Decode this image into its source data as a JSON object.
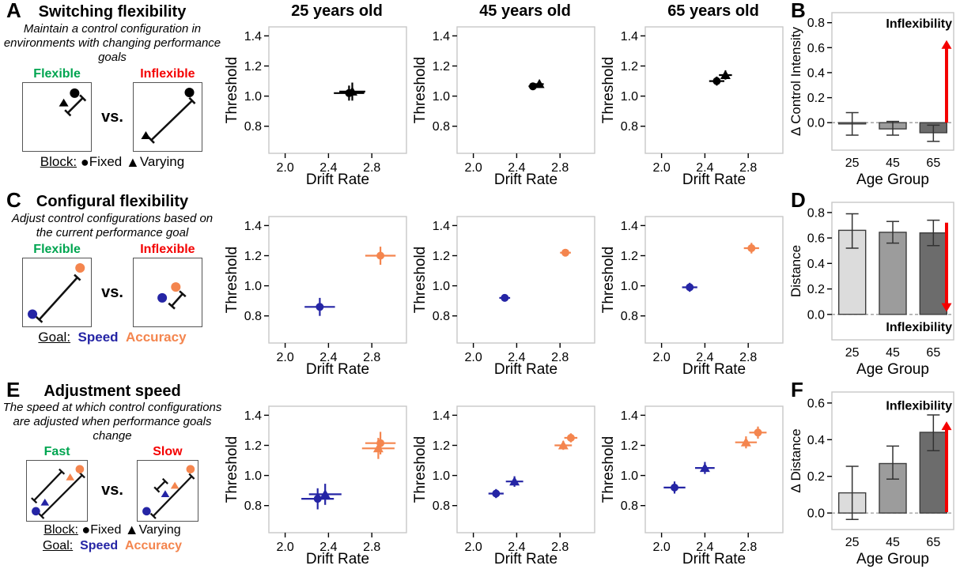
{
  "colors": {
    "black": "#000000",
    "blue": "#2525A5",
    "orange": "#F4854E",
    "green": "#00A550",
    "red": "#F40000",
    "bar_fills": [
      "#DCDCDC",
      "#9C9C9C",
      "#6C6C6C"
    ],
    "bar_border": "#3D3D3D",
    "panel_border": "#C8C8C8",
    "zero_line": "#999999"
  },
  "icons": {
    "fixed_marker": "●",
    "varying_marker": "▲"
  },
  "panels": {
    "A": {
      "letter": "A",
      "title": "Switching flexibility",
      "description": "Maintain a control configuration in environments with changing performance goals",
      "left_box_label": "Flexible",
      "right_box_label": "Inflexible",
      "vs": "vs.",
      "legend_block_label": "Block:",
      "legend_fixed": "Fixed",
      "legend_varying": "Varying"
    },
    "C": {
      "letter": "C",
      "title": "Configural flexibility",
      "description": "Adjust control configurations based on the current performance goal",
      "left_box_label": "Flexible",
      "right_box_label": "Inflexible",
      "vs": "vs.",
      "legend_goal_label": "Goal:",
      "legend_speed": "Speed",
      "legend_accuracy": "Accuracy"
    },
    "E": {
      "letter": "E",
      "title": "Adjustment speed",
      "description": "The speed at which control configurations are adjusted when performance goals change",
      "left_box_label": "Fast",
      "right_box_label": "Slow",
      "vs": "vs.",
      "legend_block_label": "Block:",
      "legend_fixed": "Fixed",
      "legend_varying": "Varying",
      "legend_goal_label": "Goal:",
      "legend_speed": "Speed",
      "legend_accuracy": "Accuracy"
    }
  },
  "chart_data": [
    {
      "id": "A25",
      "type": "scatter",
      "title": "25 years old",
      "xlabel": "Drift Rate",
      "ylabel": "Threshold",
      "xlim": [
        1.85,
        3.12
      ],
      "ylim": [
        0.62,
        1.46
      ],
      "xticks": [
        2.0,
        2.4,
        2.8
      ],
      "yticks": [
        0.8,
        1.0,
        1.2,
        1.4
      ],
      "points": [
        {
          "marker": "circle",
          "color": "black",
          "x": 2.59,
          "y": 1.02,
          "xerr": 0.14,
          "yerr": 0.05
        },
        {
          "marker": "triangle",
          "color": "black",
          "x": 2.62,
          "y": 1.03,
          "xerr": 0.12,
          "yerr": 0.06
        }
      ]
    },
    {
      "id": "A45",
      "type": "scatter",
      "title": "45 years old",
      "xlabel": "Drift Rate",
      "ylabel": "Threshold",
      "xlim": [
        1.85,
        3.12
      ],
      "ylim": [
        0.62,
        1.46
      ],
      "xticks": [
        2.0,
        2.4,
        2.8
      ],
      "yticks": [
        0.8,
        1.0,
        1.2,
        1.4
      ],
      "points": [
        {
          "marker": "circle",
          "color": "black",
          "x": 2.55,
          "y": 1.065,
          "xerr": 0.04,
          "yerr": 0.02
        },
        {
          "marker": "triangle",
          "color": "black",
          "x": 2.61,
          "y": 1.08,
          "xerr": 0.04,
          "yerr": 0.025
        }
      ]
    },
    {
      "id": "A65",
      "type": "scatter",
      "title": "65 years old",
      "xlabel": "Drift Rate",
      "ylabel": "Threshold",
      "xlim": [
        1.85,
        3.12
      ],
      "ylim": [
        0.62,
        1.46
      ],
      "xticks": [
        2.0,
        2.4,
        2.8
      ],
      "yticks": [
        0.8,
        1.0,
        1.2,
        1.4
      ],
      "points": [
        {
          "marker": "circle",
          "color": "black",
          "x": 2.51,
          "y": 1.1,
          "xerr": 0.07,
          "yerr": 0.03
        },
        {
          "marker": "triangle",
          "color": "black",
          "x": 2.59,
          "y": 1.14,
          "xerr": 0.06,
          "yerr": 0.03
        }
      ]
    },
    {
      "id": "B",
      "type": "bar",
      "letter": "B",
      "ylabel": "Δ Control Intensity",
      "xlabel": "Age Group",
      "categories": [
        "25",
        "45",
        "65"
      ],
      "values": [
        -0.01,
        -0.05,
        -0.08
      ],
      "err_low": [
        -0.1,
        -0.1,
        -0.15
      ],
      "err_high": [
        0.08,
        0.01,
        -0.02
      ],
      "yticks": [
        0.0,
        0.2,
        0.4,
        0.6,
        0.8
      ],
      "ylim": [
        -0.22,
        0.88
      ],
      "annotation": "Inflexibility",
      "arrow": {
        "dir": "up",
        "start": 0.0,
        "end": 0.66,
        "label_y": 0.79
      }
    },
    {
      "id": "C25",
      "type": "scatter",
      "title": "",
      "xlabel": "Drift Rate",
      "ylabel": "Threshold",
      "xlim": [
        1.85,
        3.12
      ],
      "ylim": [
        0.62,
        1.46
      ],
      "xticks": [
        2.0,
        2.4,
        2.8
      ],
      "yticks": [
        0.8,
        1.0,
        1.2,
        1.4
      ],
      "points": [
        {
          "marker": "circle",
          "color": "blue",
          "x": 2.32,
          "y": 0.86,
          "xerr": 0.14,
          "yerr": 0.06
        },
        {
          "marker": "circle",
          "color": "orange",
          "x": 2.88,
          "y": 1.2,
          "xerr": 0.14,
          "yerr": 0.06
        }
      ]
    },
    {
      "id": "C45",
      "type": "scatter",
      "title": "",
      "xlabel": "Drift Rate",
      "ylabel": "Threshold",
      "xlim": [
        1.85,
        3.12
      ],
      "ylim": [
        0.62,
        1.46
      ],
      "xticks": [
        2.0,
        2.4,
        2.8
      ],
      "yticks": [
        0.8,
        1.0,
        1.2,
        1.4
      ],
      "points": [
        {
          "marker": "circle",
          "color": "blue",
          "x": 2.29,
          "y": 0.92,
          "xerr": 0.05,
          "yerr": 0.02
        },
        {
          "marker": "circle",
          "color": "orange",
          "x": 2.85,
          "y": 1.22,
          "xerr": 0.05,
          "yerr": 0.02
        }
      ]
    },
    {
      "id": "C65",
      "type": "scatter",
      "title": "",
      "xlabel": "Drift Rate",
      "ylabel": "Threshold",
      "xlim": [
        1.85,
        3.12
      ],
      "ylim": [
        0.62,
        1.46
      ],
      "xticks": [
        2.0,
        2.4,
        2.8
      ],
      "yticks": [
        0.8,
        1.0,
        1.2,
        1.4
      ],
      "points": [
        {
          "marker": "circle",
          "color": "blue",
          "x": 2.26,
          "y": 0.99,
          "xerr": 0.07,
          "yerr": 0.03
        },
        {
          "marker": "circle",
          "color": "orange",
          "x": 2.83,
          "y": 1.25,
          "xerr": 0.07,
          "yerr": 0.035
        }
      ]
    },
    {
      "id": "D",
      "type": "bar",
      "letter": "D",
      "ylabel": "Distance",
      "xlabel": "Age Group",
      "categories": [
        "25",
        "45",
        "65"
      ],
      "values": [
        0.66,
        0.645,
        0.64
      ],
      "err_low": [
        0.52,
        0.56,
        0.54
      ],
      "err_high": [
        0.79,
        0.73,
        0.74
      ],
      "yticks": [
        0.0,
        0.2,
        0.4,
        0.6,
        0.8
      ],
      "ylim": [
        -0.2,
        0.88
      ],
      "annotation": "Inflexibility",
      "arrow": {
        "dir": "down",
        "start": 0.72,
        "end": 0.02,
        "label_y": -0.1
      }
    },
    {
      "id": "E25",
      "type": "scatter",
      "title": "",
      "xlabel": "Drift Rate",
      "ylabel": "Threshold",
      "xlim": [
        1.85,
        3.12
      ],
      "ylim": [
        0.62,
        1.46
      ],
      "xticks": [
        2.0,
        2.4,
        2.8
      ],
      "yticks": [
        0.8,
        1.0,
        1.2,
        1.4
      ],
      "points": [
        {
          "marker": "circle",
          "color": "blue",
          "x": 2.3,
          "y": 0.845,
          "xerr": 0.15,
          "yerr": 0.07
        },
        {
          "marker": "triangle",
          "color": "blue",
          "x": 2.37,
          "y": 0.875,
          "xerr": 0.15,
          "yerr": 0.07
        },
        {
          "marker": "triangle",
          "color": "orange",
          "x": 2.86,
          "y": 1.18,
          "xerr": 0.15,
          "yerr": 0.07
        },
        {
          "marker": "circle",
          "color": "orange",
          "x": 2.88,
          "y": 1.215,
          "xerr": 0.14,
          "yerr": 0.075
        }
      ]
    },
    {
      "id": "E45",
      "type": "scatter",
      "title": "",
      "xlabel": "Drift Rate",
      "ylabel": "Threshold",
      "xlim": [
        1.85,
        3.12
      ],
      "ylim": [
        0.62,
        1.46
      ],
      "xticks": [
        2.0,
        2.4,
        2.8
      ],
      "yticks": [
        0.8,
        1.0,
        1.2,
        1.4
      ],
      "points": [
        {
          "marker": "circle",
          "color": "blue",
          "x": 2.21,
          "y": 0.88,
          "xerr": 0.07,
          "yerr": 0.03
        },
        {
          "marker": "triangle",
          "color": "blue",
          "x": 2.38,
          "y": 0.96,
          "xerr": 0.08,
          "yerr": 0.035
        },
        {
          "marker": "triangle",
          "color": "orange",
          "x": 2.83,
          "y": 1.2,
          "xerr": 0.08,
          "yerr": 0.03
        },
        {
          "marker": "circle",
          "color": "orange",
          "x": 2.9,
          "y": 1.25,
          "xerr": 0.06,
          "yerr": 0.03
        }
      ]
    },
    {
      "id": "E65",
      "type": "scatter",
      "title": "",
      "xlabel": "Drift Rate",
      "ylabel": "Threshold",
      "xlim": [
        1.85,
        3.12
      ],
      "ylim": [
        0.62,
        1.46
      ],
      "xticks": [
        2.0,
        2.4,
        2.8
      ],
      "yticks": [
        0.8,
        1.0,
        1.2,
        1.4
      ],
      "points": [
        {
          "marker": "circle",
          "color": "blue",
          "x": 2.12,
          "y": 0.92,
          "xerr": 0.1,
          "yerr": 0.04
        },
        {
          "marker": "triangle",
          "color": "blue",
          "x": 2.4,
          "y": 1.05,
          "xerr": 0.09,
          "yerr": 0.04
        },
        {
          "marker": "triangle",
          "color": "orange",
          "x": 2.78,
          "y": 1.22,
          "xerr": 0.1,
          "yerr": 0.04
        },
        {
          "marker": "circle",
          "color": "orange",
          "x": 2.89,
          "y": 1.285,
          "xerr": 0.08,
          "yerr": 0.04
        }
      ]
    },
    {
      "id": "F",
      "type": "bar",
      "letter": "F",
      "ylabel": "Δ Distance",
      "xlabel": "Age Group",
      "categories": [
        "25",
        "45",
        "65"
      ],
      "values": [
        0.11,
        0.27,
        0.44
      ],
      "err_low": [
        -0.035,
        0.185,
        0.34
      ],
      "err_high": [
        0.255,
        0.365,
        0.535
      ],
      "yticks": [
        0.0,
        0.2,
        0.4,
        0.6
      ],
      "ylim": [
        -0.09,
        0.66
      ],
      "annotation": "Inflexibility",
      "arrow": {
        "dir": "up",
        "start": 0.005,
        "end": 0.5,
        "label_y": 0.585
      }
    }
  ]
}
